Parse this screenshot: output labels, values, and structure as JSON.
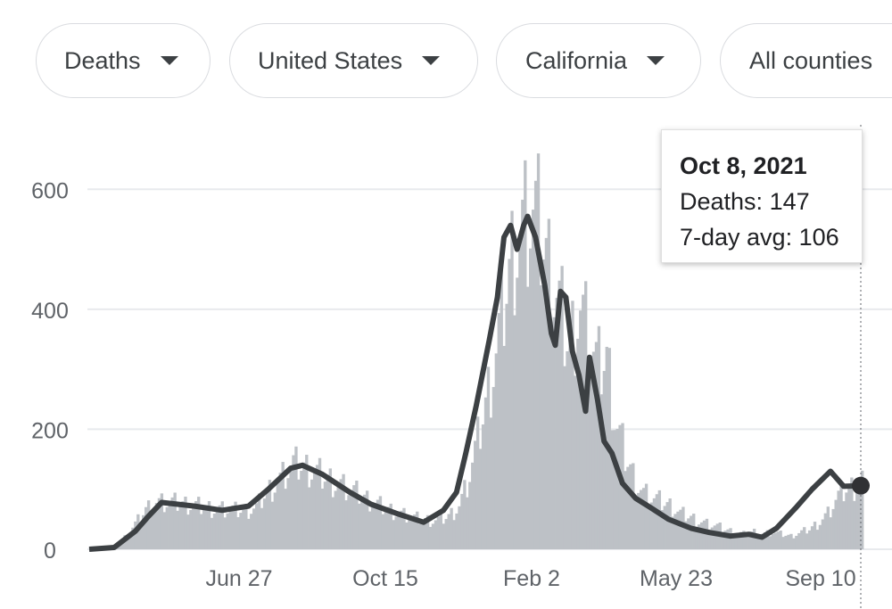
{
  "filters": {
    "metric": "Deaths",
    "country": "United States",
    "state": "California",
    "county": "All counties"
  },
  "tooltip": {
    "date": "Oct 8, 2021",
    "deaths_label": "Deaths:",
    "deaths_value": "147",
    "avg_label": "7-day avg:",
    "avg_value": "106"
  },
  "colors": {
    "bars": "#bdc1c6",
    "line": "#3c4043",
    "grid": "#e8eaed",
    "text": "#5f6368"
  },
  "chart_data": {
    "type": "bar",
    "title": "",
    "xlabel": "",
    "ylabel": "",
    "ylim": [
      0,
      700
    ],
    "yticks": [
      0,
      200,
      400,
      600
    ],
    "grid": true,
    "xticks": [
      "Jun 27",
      "Oct 15",
      "Feb 2",
      "May 23",
      "Sep 10"
    ],
    "x_start": "Mar 1, 2020",
    "x_end": "Oct 8, 2021",
    "highlight_date": "Oct 8, 2021",
    "series": [
      {
        "name": "Deaths",
        "sampled_every": "7 days",
        "values": [
          0,
          2,
          3,
          8,
          25,
          45,
          68,
          80,
          78,
          77,
          76,
          74,
          72,
          70,
          68,
          66,
          64,
          65,
          70,
          95,
          110,
          125,
          140,
          138,
          132,
          125,
          118,
          110,
          100,
          92,
          84,
          76,
          70,
          64,
          58,
          52,
          50,
          48,
          50,
          58,
          74,
          115,
          180,
          250,
          330,
          430,
          520,
          545,
          560,
          520,
          455,
          400,
          340,
          420,
          360,
          300,
          320,
          210,
          160,
          120,
          95,
          85,
          78,
          72,
          60,
          55,
          48,
          42,
          38,
          32,
          28,
          25,
          30,
          26,
          28,
          25,
          22,
          28,
          34,
          45,
          60,
          85,
          100,
          105,
          125,
          110,
          147
        ]
      },
      {
        "name": "7-day avg",
        "points": [
          [
            "Mar 1, 2020",
            0
          ],
          [
            "Mar 20, 2020",
            3
          ],
          [
            "Apr 5, 2020",
            30
          ],
          [
            "Apr 15, 2020",
            55
          ],
          [
            "Apr 25, 2020",
            78
          ],
          [
            "May 20, 2020",
            72
          ],
          [
            "Jun 10, 2020",
            65
          ],
          [
            "Jun 30, 2020",
            72
          ],
          [
            "Jul 15, 2020",
            100
          ],
          [
            "Aug 1, 2020",
            135
          ],
          [
            "Aug 10, 2020",
            140
          ],
          [
            "Aug 25, 2020",
            125
          ],
          [
            "Sep 15, 2020",
            95
          ],
          [
            "Oct 1, 2020",
            75
          ],
          [
            "Oct 20, 2020",
            60
          ],
          [
            "Nov 10, 2020",
            45
          ],
          [
            "Nov 25, 2020",
            65
          ],
          [
            "Dec 5, 2020",
            95
          ],
          [
            "Dec 12, 2020",
            160
          ],
          [
            "Dec 20, 2020",
            240
          ],
          [
            "Dec 30, 2020",
            350
          ],
          [
            "Jan 5, 2021",
            420
          ],
          [
            "Jan 10, 2021",
            520
          ],
          [
            "Jan 15, 2021",
            540
          ],
          [
            "Jan 20, 2021",
            500
          ],
          [
            "Jan 25, 2021",
            540
          ],
          [
            "Jan 28, 2021",
            555
          ],
          [
            "Feb 3, 2021",
            520
          ],
          [
            "Feb 10, 2021",
            440
          ],
          [
            "Feb 15, 2021",
            360
          ],
          [
            "Feb 18, 2021",
            340
          ],
          [
            "Feb 22, 2021",
            430
          ],
          [
            "Feb 26, 2021",
            420
          ],
          [
            "Mar 3, 2021",
            330
          ],
          [
            "Mar 8, 2021",
            290
          ],
          [
            "Mar 13, 2021",
            230
          ],
          [
            "Mar 16, 2021",
            320
          ],
          [
            "Mar 22, 2021",
            250
          ],
          [
            "Mar 27, 2021",
            180
          ],
          [
            "Apr 2, 2021",
            160
          ],
          [
            "Apr 10, 2021",
            110
          ],
          [
            "Apr 20, 2021",
            85
          ],
          [
            "May 1, 2021",
            70
          ],
          [
            "May 15, 2021",
            50
          ],
          [
            "Jun 1, 2021",
            35
          ],
          [
            "Jun 15, 2021",
            28
          ],
          [
            "Jul 1, 2021",
            22
          ],
          [
            "Jul 15, 2021",
            25
          ],
          [
            "Jul 25, 2021",
            20
          ],
          [
            "Aug 5, 2021",
            35
          ],
          [
            "Aug 20, 2021",
            70
          ],
          [
            "Sep 1, 2021",
            100
          ],
          [
            "Sep 15, 2021",
            130
          ],
          [
            "Sep 25, 2021",
            105
          ],
          [
            "Oct 8, 2021",
            106
          ]
        ]
      }
    ]
  }
}
